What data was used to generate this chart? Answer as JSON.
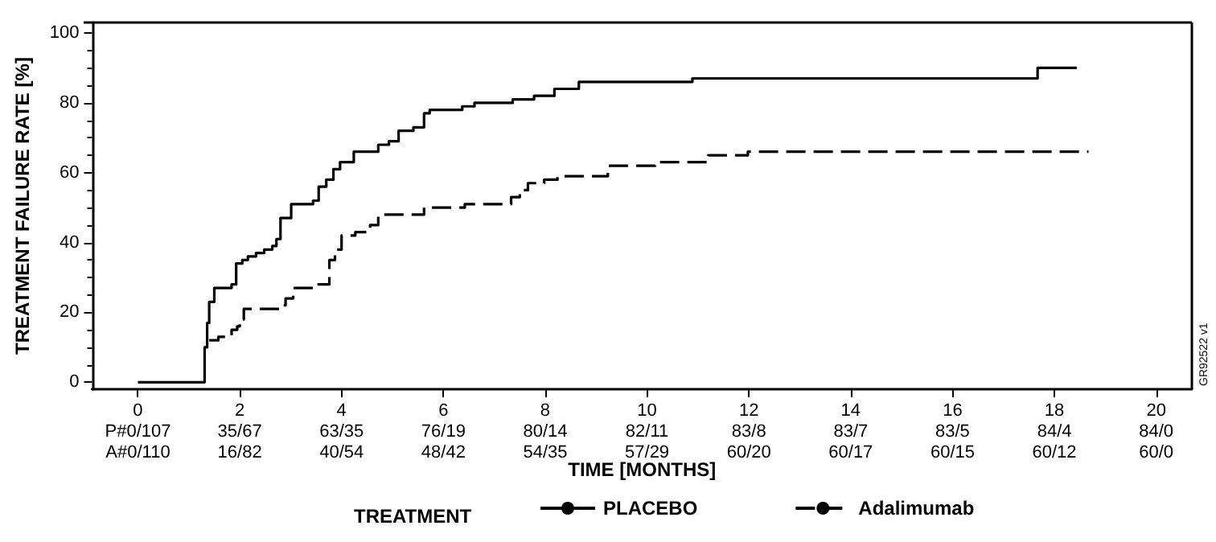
{
  "chart_data": {
    "type": "step",
    "xlabel": "TIME [MONTHS]",
    "ylabel": "TREATMENT FAILURE RATE [%]",
    "legend_title": "TREATMENT",
    "legend": "bottom",
    "grid": false,
    "marker": "none",
    "xlim": [
      -0.9,
      20.7
    ],
    "ylim": [
      -2,
      103
    ],
    "xticks": [
      0,
      2,
      4,
      6,
      8,
      10,
      12,
      14,
      16,
      18,
      20
    ],
    "yticks": [
      0,
      20,
      40,
      60,
      80,
      100
    ],
    "series": [
      {
        "name": "PLACEBO",
        "color": "#000000",
        "line_style": "solid",
        "x": [
          0,
          1.31,
          1.36,
          1.4,
          1.5,
          1.84,
          1.93,
          2.05,
          2.16,
          2.32,
          2.48,
          2.64,
          2.72,
          2.8,
          3.01,
          3.44,
          3.55,
          3.7,
          3.84,
          3.97,
          4.24,
          4.72,
          4.93,
          5.12,
          5.41,
          5.62,
          5.73,
          6.37,
          6.61,
          7.36,
          7.78,
          8.18,
          8.66,
          10.89,
          17.67,
          18.44
        ],
        "values": [
          0,
          10,
          17,
          23,
          27,
          28,
          34,
          35,
          36,
          37,
          38,
          39,
          41,
          47,
          51,
          52,
          56,
          58,
          61,
          63,
          66,
          68,
          69,
          72,
          73,
          77,
          78,
          79,
          80,
          81,
          82,
          84,
          86,
          87,
          90,
          90
        ]
      },
      {
        "name": "Adalimumab",
        "color": "#000000",
        "line_style": "dashed",
        "x": [
          1.4,
          1.58,
          1.84,
          1.95,
          2.0,
          2.08,
          2.8,
          2.9,
          3.05,
          3.44,
          3.76,
          3.87,
          4.0,
          4.27,
          4.56,
          4.72,
          5.62,
          6.42,
          7.33,
          7.5,
          7.66,
          7.98,
          8.24,
          9.23,
          10.16,
          11.2,
          11.98,
          18.67
        ],
        "values": [
          12,
          13,
          15,
          16,
          18,
          21,
          22,
          24,
          27,
          28,
          35,
          38,
          42,
          43,
          45,
          48,
          50,
          51,
          53,
          55,
          57,
          58,
          59,
          62,
          63,
          65,
          66,
          66
        ]
      }
    ],
    "annotations": [
      "P#0/107",
      "35/67",
      "63/35",
      "76/19",
      "80/14",
      "82/11",
      "83/8",
      "83/7",
      "83/5",
      "84/4",
      "84/0",
      "A#0/110",
      "16/82",
      "40/54",
      "48/42",
      "54/35",
      "57/29",
      "60/20",
      "60/17",
      "60/15",
      "60/12",
      "60/0",
      "GR92522 v1"
    ]
  }
}
